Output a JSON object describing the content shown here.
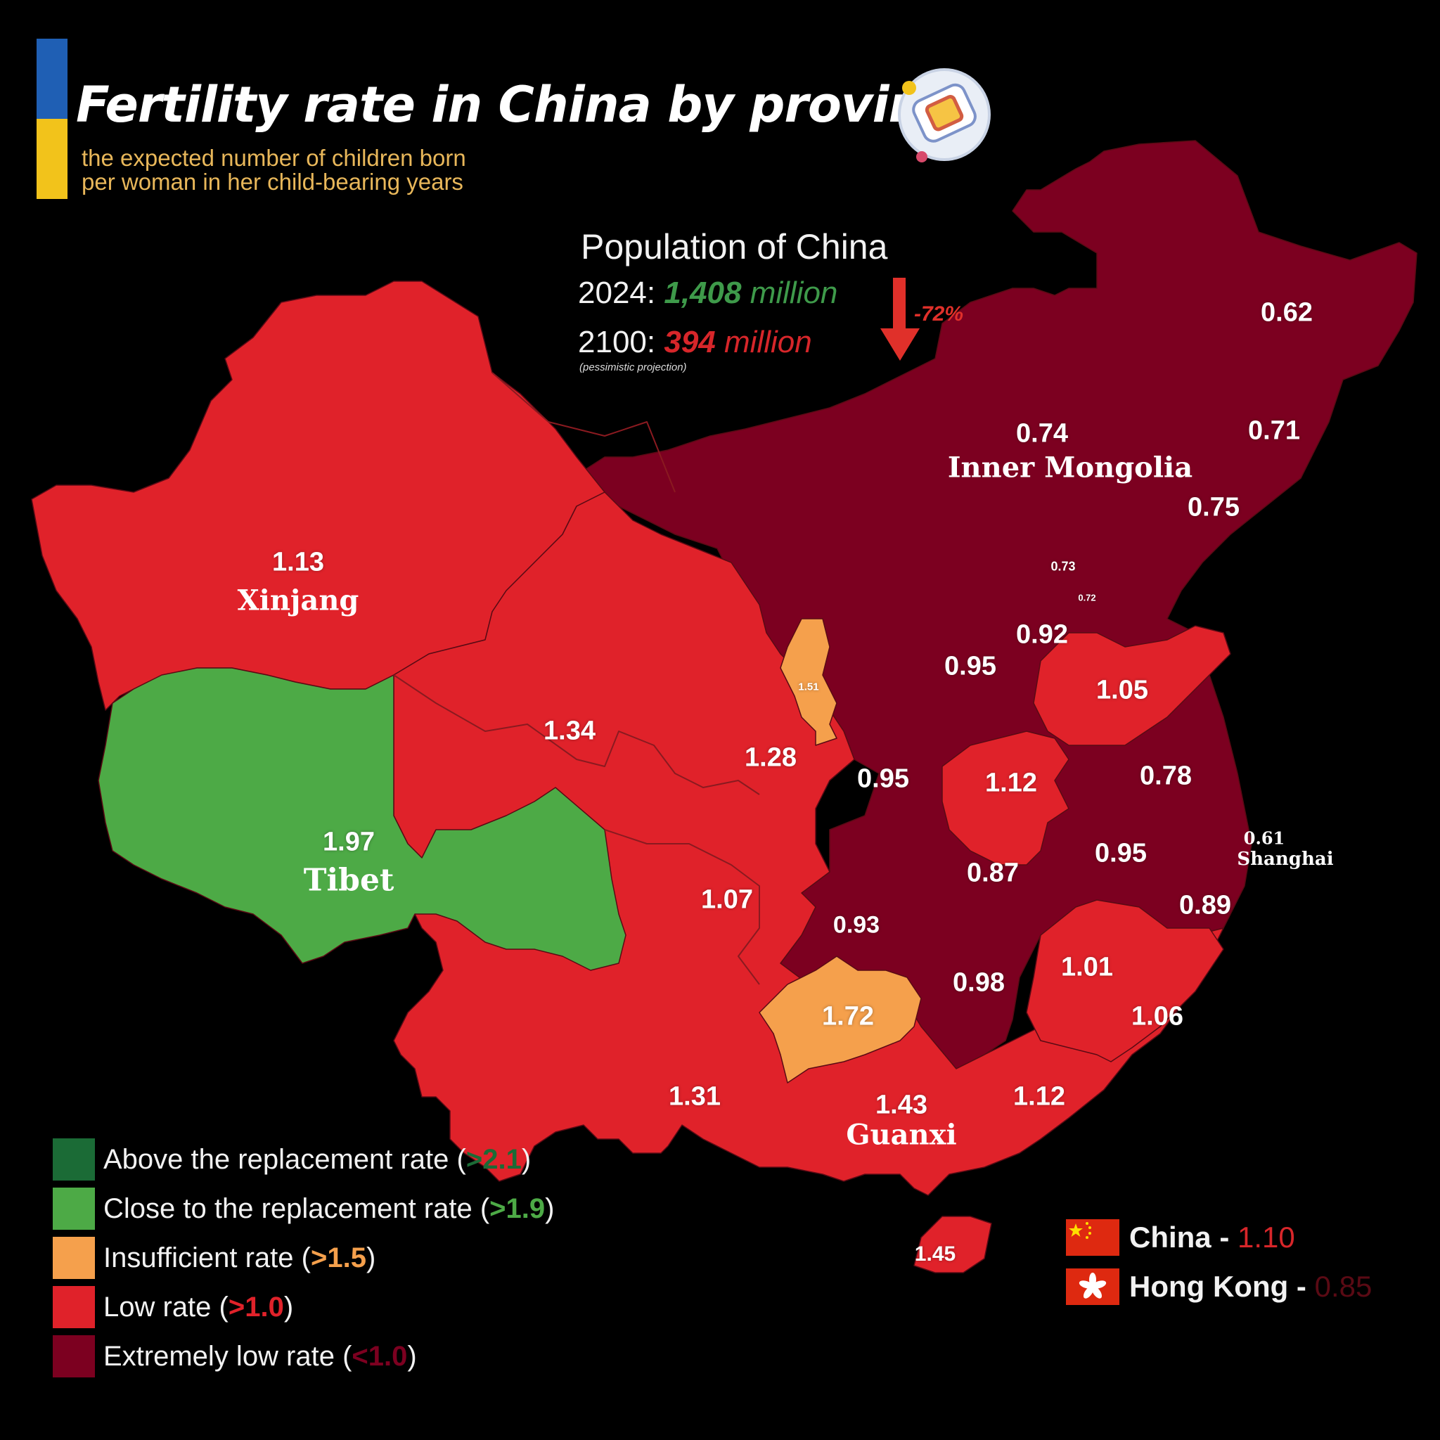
{
  "header": {
    "title": "Fertility rate in China by province",
    "subtitle_line1": "the expected number of children born",
    "subtitle_line2": "per woman in her child-bearing years"
  },
  "population": {
    "title": "Population of China",
    "line_2024_prefix": "2024:",
    "line_2024_value": "1,408",
    "line_2024_unit": "million",
    "line_2100_prefix": "2100:",
    "line_2100_value": "394",
    "line_2100_unit": "million",
    "note": "(pessimistic projection)",
    "change": "-72%"
  },
  "colors": {
    "above": "#1b6b36",
    "close": "#4daa46",
    "insufficient": "#f5a04c",
    "low": "#e0222a",
    "extremely_low": "#7c0020",
    "flag_blue": "#1f5fb4",
    "flag_yellow": "#f2c31b",
    "green_text": "#3e9a4a",
    "red_text": "#d7262a"
  },
  "regions": [
    {
      "name": "Heilongjiang",
      "value": "0.62",
      "category": "extremely_low"
    },
    {
      "name": "Inner Mongolia",
      "value": "0.74",
      "category": "extremely_low",
      "label": "Inner Mongolia"
    },
    {
      "name": "Jilin",
      "value": "0.71",
      "category": "extremely_low"
    },
    {
      "name": "Liaoning",
      "value": "0.75",
      "category": "extremely_low"
    },
    {
      "name": "Beijing",
      "value": "0.73",
      "category": "extremely_low"
    },
    {
      "name": "Tianjin",
      "value": "0.72",
      "category": "extremely_low"
    },
    {
      "name": "Hebei",
      "value": "0.92",
      "category": "extremely_low"
    },
    {
      "name": "Shanxi",
      "value": "0.95",
      "category": "extremely_low"
    },
    {
      "name": "Shandong",
      "value": "1.05",
      "category": "low"
    },
    {
      "name": "Xinjiang",
      "value": "1.13",
      "category": "low",
      "label": "Xinjang"
    },
    {
      "name": "Gansu",
      "value": "1.34",
      "category": "low"
    },
    {
      "name": "Ningxia",
      "value": "1.51",
      "category": "insufficient"
    },
    {
      "name": "Shaanxi-north",
      "value": "1.28",
      "category": "low"
    },
    {
      "name": "Shaanxi",
      "value": "0.95",
      "category": "extremely_low"
    },
    {
      "name": "Henan",
      "value": "1.12",
      "category": "low"
    },
    {
      "name": "Jiangsu",
      "value": "0.78",
      "category": "extremely_low"
    },
    {
      "name": "Shanghai",
      "value": "0.61",
      "category": "extremely_low",
      "label": "Shanghai"
    },
    {
      "name": "Anhui",
      "value": "0.95",
      "category": "extremely_low"
    },
    {
      "name": "Hubei",
      "value": "0.87",
      "category": "extremely_low"
    },
    {
      "name": "Zhejiang",
      "value": "0.89",
      "category": "extremely_low"
    },
    {
      "name": "Tibet",
      "value": "1.97",
      "category": "close",
      "label": "Tibet"
    },
    {
      "name": "Sichuan",
      "value": "1.07",
      "category": "low"
    },
    {
      "name": "Chongqing",
      "value": "0.93",
      "category": "extremely_low"
    },
    {
      "name": "Guizhou",
      "value": "1.72",
      "category": "insufficient"
    },
    {
      "name": "Hunan",
      "value": "0.98",
      "category": "extremely_low"
    },
    {
      "name": "Jiangxi",
      "value": "1.01",
      "category": "low"
    },
    {
      "name": "Fujian",
      "value": "1.06",
      "category": "low"
    },
    {
      "name": "Yunnan",
      "value": "1.31",
      "category": "low"
    },
    {
      "name": "Guangxi",
      "value": "1.43",
      "category": "low",
      "label": "Guanxi"
    },
    {
      "name": "Guangdong",
      "value": "1.12",
      "category": "low"
    },
    {
      "name": "Hainan",
      "value": "1.45",
      "category": "low"
    }
  ],
  "legend": [
    {
      "text": "Above the replacement rate (",
      "value": ">2.1",
      "close": ")",
      "category": "above"
    },
    {
      "text": "Close to the replacement rate (",
      "value": ">1.9",
      "close": ")",
      "category": "close"
    },
    {
      "text": "Insufficient rate (",
      "value": ">1.5",
      "close": ")",
      "category": "insufficient"
    },
    {
      "text": "Low rate (",
      "value": ">1.0",
      "close": ")",
      "category": "low"
    },
    {
      "text": "Extremely low rate (",
      "value": "<1.0",
      "close": ")",
      "category": "extremely_low"
    }
  ],
  "national": [
    {
      "name": "China - ",
      "value": "1.10",
      "flag": "china-flag"
    },
    {
      "name": "Hong Kong - ",
      "value": "0.85",
      "flag": "hong-kong-flag"
    }
  ]
}
